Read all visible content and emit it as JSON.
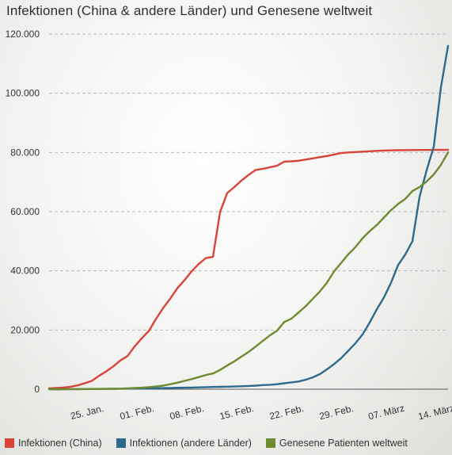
{
  "chart_data": {
    "type": "line",
    "title": "Infektionen (China & andere Länder) und Genesene weltweit",
    "xlabel": "",
    "ylabel": "",
    "x_ticks": [
      "25. Jan.",
      "01. Feb.",
      "08. Feb.",
      "15. Feb.",
      "22. Feb.",
      "29. Feb.",
      "07. März",
      "14. März"
    ],
    "y_ticks": [
      "0",
      "20.000",
      "40.000",
      "60.000",
      "80.000",
      "100.000",
      "120.000"
    ],
    "ylim": [
      0,
      120000
    ],
    "grid": "horizontal dashed",
    "legend_position": "bottom",
    "x": [
      "2020-01-20",
      "2020-01-21",
      "2020-01-22",
      "2020-01-23",
      "2020-01-24",
      "2020-01-25",
      "2020-01-26",
      "2020-01-27",
      "2020-01-28",
      "2020-01-29",
      "2020-01-30",
      "2020-01-31",
      "2020-02-01",
      "2020-02-02",
      "2020-02-03",
      "2020-02-04",
      "2020-02-05",
      "2020-02-06",
      "2020-02-07",
      "2020-02-08",
      "2020-02-09",
      "2020-02-10",
      "2020-02-11",
      "2020-02-12",
      "2020-02-13",
      "2020-02-14",
      "2020-02-15",
      "2020-02-16",
      "2020-02-17",
      "2020-02-18",
      "2020-02-19",
      "2020-02-20",
      "2020-02-21",
      "2020-02-22",
      "2020-02-23",
      "2020-02-24",
      "2020-02-25",
      "2020-02-26",
      "2020-02-27",
      "2020-02-28",
      "2020-02-29",
      "2020-03-01",
      "2020-03-02",
      "2020-03-03",
      "2020-03-04",
      "2020-03-05",
      "2020-03-06",
      "2020-03-07",
      "2020-03-08",
      "2020-03-09",
      "2020-03-10",
      "2020-03-11",
      "2020-03-12",
      "2020-03-13",
      "2020-03-14",
      "2020-03-15",
      "2020-03-16"
    ],
    "series": [
      {
        "name": "Infektionen (China)",
        "color": "#d9443a",
        "values": [
          300,
          440,
          570,
          830,
          1290,
          2000,
          2800,
          4500,
          6000,
          7700,
          9700,
          11200,
          14400,
          17200,
          19700,
          23700,
          27400,
          30600,
          34100,
          36800,
          39800,
          42300,
          44300,
          44700,
          59800,
          66300,
          68300,
          70500,
          72400,
          74100,
          74500,
          75000,
          75500,
          76900,
          77000,
          77200,
          77600,
          78000,
          78400,
          78800,
          79300,
          79800,
          80000,
          80150,
          80270,
          80400,
          80550,
          80650,
          80700,
          80750,
          80780,
          80800,
          80830,
          80850,
          80860,
          80870,
          80880
        ]
      },
      {
        "name": "Infektionen (andere Länder)",
        "color": "#2e6a8e",
        "values": [
          2,
          4,
          10,
          17,
          30,
          50,
          60,
          85,
          110,
          130,
          150,
          180,
          210,
          240,
          280,
          320,
          370,
          420,
          470,
          520,
          560,
          620,
          700,
          750,
          800,
          850,
          900,
          1000,
          1100,
          1200,
          1400,
          1500,
          1700,
          2000,
          2300,
          2600,
          3200,
          4000,
          5100,
          6700,
          8500,
          10500,
          13000,
          15500,
          18500,
          22500,
          27000,
          31000,
          36000,
          42000,
          45500,
          50000,
          65000,
          74000,
          82000,
          102000,
          116000
        ]
      },
      {
        "name": "Genesene Patienten weltweit",
        "color": "#6f8b2f",
        "values": [
          0,
          0,
          0,
          30,
          40,
          50,
          60,
          100,
          120,
          150,
          200,
          300,
          400,
          500,
          700,
          900,
          1200,
          1700,
          2200,
          2800,
          3400,
          4100,
          4800,
          5300,
          6500,
          8000,
          9400,
          11000,
          12600,
          14400,
          16300,
          18200,
          19800,
          22700,
          23800,
          25900,
          28000,
          30500,
          33000,
          36000,
          39800,
          42700,
          45600,
          48000,
          51000,
          53400,
          55500,
          58000,
          60500,
          62600,
          64300,
          67000,
          68300,
          70200,
          72600,
          75800,
          80000
        ]
      }
    ]
  },
  "legend": {
    "items": [
      {
        "label": "Infektionen (China)",
        "color": "#d9443a"
      },
      {
        "label": "Infektionen (andere Länder)",
        "color": "#2e6a8e"
      },
      {
        "label": "Genesene Patienten weltweit",
        "color": "#6f8b2f"
      }
    ]
  }
}
